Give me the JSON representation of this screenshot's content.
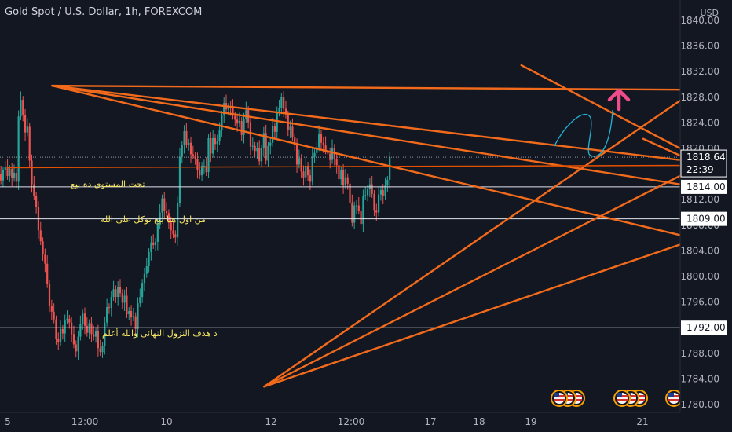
{
  "header": {
    "title": "Gold Spot / U.S. Dollar, 1h, FOREXCOM"
  },
  "axis": {
    "currency": "USD"
  },
  "chart_data": {
    "type": "candlestick",
    "title": "Gold Spot / U.S. Dollar, 1h, FOREXCOM",
    "ylim": [
      1779,
      1841
    ],
    "y_ticks": [
      1780,
      1784,
      1788,
      1792,
      1796,
      1800,
      1804,
      1808,
      1812,
      1816,
      1820,
      1824,
      1828,
      1832,
      1836,
      1840
    ],
    "x_ticks": [
      "5",
      "12:00",
      "10",
      "12",
      "12:00",
      "17",
      "18",
      "19",
      "21"
    ],
    "grid": false,
    "current_price": {
      "value": 1818.64,
      "label": "1818.64",
      "timer": "22:39"
    },
    "horizontal_levels": [
      {
        "value": 1814.0,
        "label": "1814.00",
        "note": "تحت المستوى ده بيع"
      },
      {
        "value": 1809.0,
        "label": "1809.00",
        "note": "من اول هنا بيع توكل على الله"
      },
      {
        "value": 1792.0,
        "label": "1792.00",
        "note": "د هدف النزول النهائى والله أعلم"
      }
    ],
    "trendlines": [
      {
        "from": [
          5.85,
          1829.8
        ],
        "to": [
          23.0,
          1828.9
        ]
      },
      {
        "from": [
          5.85,
          1829.8
        ],
        "to": [
          23.0,
          1813.0
        ]
      },
      {
        "from": [
          5.85,
          1829.8
        ],
        "to": [
          23.0,
          1807.5
        ]
      },
      {
        "from": [
          5.85,
          1829.8
        ],
        "to": [
          23.0,
          1796.0
        ]
      },
      {
        "from": [
          9.85,
          1782.8
        ],
        "to": [
          22.0,
          1852.0
        ]
      },
      {
        "from": [
          9.85,
          1782.8
        ],
        "to": [
          23.0,
          1838.0
        ]
      },
      {
        "from": [
          9.85,
          1782.8
        ],
        "to": [
          23.0,
          1820.0
        ]
      },
      {
        "from": [
          14.7,
          1833.0
        ],
        "to": [
          23.0,
          1797.0
        ]
      },
      {
        "from": [
          17.0,
          1821.5
        ],
        "to": [
          23.0,
          1799.0
        ]
      },
      {
        "from": [
          5.0,
          1817.0
        ],
        "to": [
          23.0,
          1817.5
        ]
      }
    ],
    "candles_start": 4.8,
    "candles_step": 0.04167,
    "candles_close": [
      1815.2,
      1816.0,
      1815.0,
      1816.6,
      1817.1,
      1815.7,
      1816.8,
      1815.4,
      1816.2,
      1814.8,
      1825.0,
      1827.6,
      1825.2,
      1822.5,
      1823.4,
      1818.1,
      1814.4,
      1812.6,
      1810.8,
      1807.2,
      1805.5,
      1803.4,
      1802.0,
      1798.8,
      1795.4,
      1794.5,
      1793.3,
      1790.3,
      1789.8,
      1791.8,
      1791.1,
      1793.1,
      1793.4,
      1792.8,
      1791.0,
      1789.4,
      1788.3,
      1790.6,
      1792.6,
      1794.2,
      1792.3,
      1791.2,
      1792.7,
      1791.0,
      1790.6,
      1791.5,
      1788.8,
      1788.2,
      1789.1,
      1792.8,
      1795.2,
      1795.1,
      1796.8,
      1798.0,
      1796.8,
      1798.3,
      1797.4,
      1795.9,
      1797.0,
      1794.1,
      1794.6,
      1793.6,
      1793.8,
      1791.8,
      1795.8,
      1796.8,
      1799.0,
      1800.4,
      1801.6,
      1803.8,
      1805.3,
      1804.9,
      1805.4,
      1808.0,
      1810.0,
      1812.2,
      1810.3,
      1809.9,
      1808.4,
      1807.2,
      1806.6,
      1806.1,
      1811.5,
      1818.7,
      1820.5,
      1822.7,
      1820.6,
      1820.9,
      1819.1,
      1818.9,
      1818.4,
      1816.6,
      1815.8,
      1817.3,
      1817.3,
      1816.3,
      1821.6,
      1819.2,
      1821.6,
      1820.7,
      1821.2,
      1822.8,
      1825.3,
      1827.1,
      1826.1,
      1826.5,
      1826.4,
      1825.1,
      1824.5,
      1823.9,
      1824.3,
      1822.1,
      1824.6,
      1826.0,
      1824.1,
      1820.3,
      1820.4,
      1819.6,
      1820.0,
      1818.0,
      1820.0,
      1822.4,
      1818.1,
      1820.4,
      1820.9,
      1823.5,
      1822.6,
      1825.6,
      1826.3,
      1828.0,
      1826.2,
      1825.3,
      1822.9,
      1823.4,
      1821.7,
      1820.6,
      1817.5,
      1818.5,
      1816.4,
      1815.5,
      1817.3,
      1815.8,
      1814.8,
      1818.7,
      1819.3,
      1820.2,
      1822.3,
      1820.9,
      1820.6,
      1819.7,
      1819.2,
      1818.2,
      1820.1,
      1818.3,
      1817.4,
      1815.2,
      1816.6,
      1814.2,
      1815.5,
      1814.5,
      1811.5,
      1808.4,
      1811.1,
      1811.1,
      1810.3,
      1808.2,
      1812.6,
      1812.7,
      1813.7,
      1814.4,
      1812.9,
      1810.4,
      1810.0,
      1812.8,
      1813.5,
      1812.6,
      1814.2,
      1815.1,
      1818.6
    ],
    "projection_arrow": {
      "x": 18.3,
      "y": 1826.0,
      "direction": "up"
    }
  }
}
